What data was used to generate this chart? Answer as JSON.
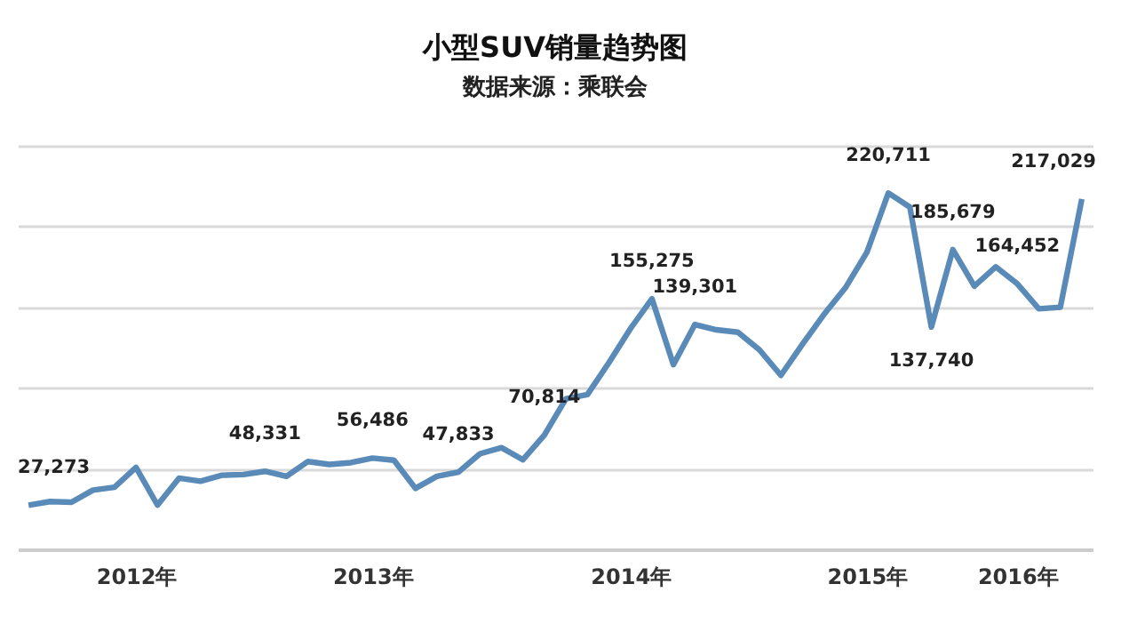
{
  "chart_data": {
    "type": "line",
    "title": "小型SUV销量趋势图",
    "subtitle": "数据来源：乘联会",
    "categories": [
      null,
      null,
      null,
      null,
      null,
      "2012年",
      null,
      null,
      null,
      null,
      null,
      null,
      null,
      null,
      null,
      null,
      "2013年",
      null,
      null,
      null,
      null,
      null,
      null,
      null,
      null,
      null,
      null,
      null,
      "2014年",
      null,
      null,
      null,
      null,
      null,
      null,
      null,
      null,
      null,
      null,
      "2015年",
      null,
      null,
      null,
      null,
      null,
      null,
      "2016年",
      null,
      null,
      null
    ],
    "series": [
      {
        "color": "#5a8bb8",
        "values": [
          27273,
          29600,
          29200,
          36700,
          38500,
          50700,
          27400,
          44100,
          42200,
          45900,
          46300,
          48331,
          45200,
          54400,
          52600,
          53700,
          56486,
          55200,
          37800,
          45200,
          47833,
          59200,
          63000,
          55500,
          70814,
          93300,
          95900,
          115600,
          136700,
          155275,
          114400,
          139301,
          136000,
          134500,
          123600,
          107800,
          127000,
          145500,
          162000,
          184000,
          220711,
          212000,
          137740,
          185679,
          163000,
          175000,
          164452,
          149000,
          150000,
          217029
        ],
        "value_labels": [
          "27,273",
          null,
          null,
          null,
          null,
          null,
          null,
          null,
          null,
          null,
          null,
          "48,331",
          null,
          null,
          null,
          null,
          "56,486",
          null,
          null,
          null,
          "47,833",
          null,
          null,
          null,
          "70,814",
          null,
          null,
          null,
          null,
          "155,275",
          null,
          "139,301",
          null,
          null,
          null,
          null,
          null,
          null,
          null,
          null,
          "220,711",
          null,
          "137,740",
          "185,679",
          null,
          null,
          "164,452",
          null,
          null,
          "217,029"
        ]
      }
    ],
    "ylim": [
      0,
      250000
    ],
    "yticks": [
      {
        "value": 0,
        "label": null
      },
      {
        "value": 50000,
        "label": null
      },
      {
        "value": 100000,
        "label": null
      },
      {
        "value": 150000,
        "label": null
      },
      {
        "value": 200000,
        "label": null
      },
      {
        "value": 250000,
        "label": null
      }
    ],
    "grid": "y",
    "tick_labels": "x",
    "marker": "none",
    "line_style": "solid"
  }
}
